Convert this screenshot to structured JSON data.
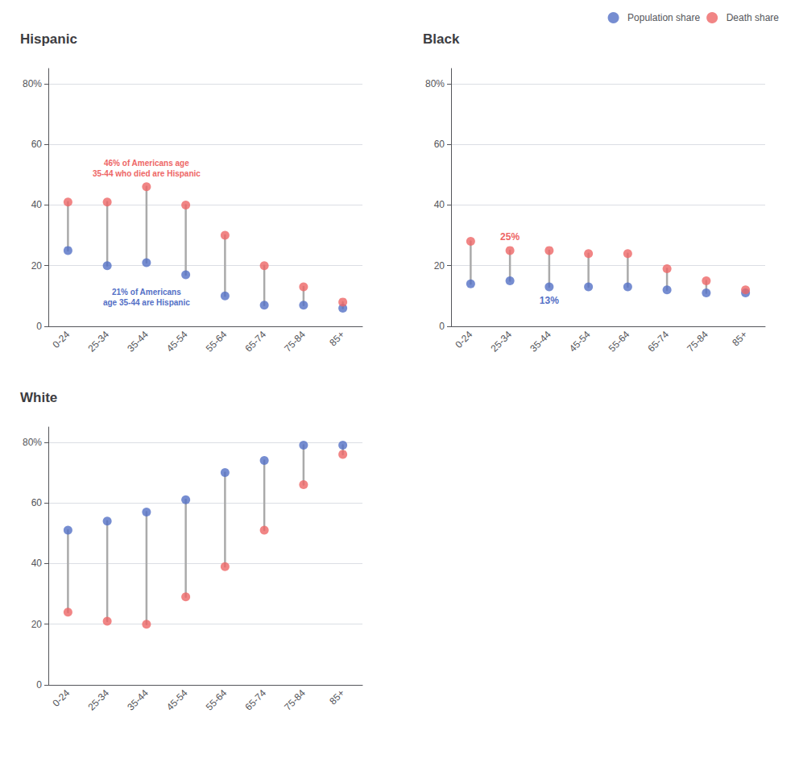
{
  "chart_data": [
    {
      "type": "dumbbell",
      "title": "Hispanic",
      "categories": [
        "0-24",
        "25-34",
        "35-44",
        "45-54",
        "55-64",
        "65-74",
        "75-84",
        "85+"
      ],
      "series": [
        {
          "name": "Population share",
          "values": [
            25,
            20,
            21,
            17,
            10,
            7,
            7,
            6
          ]
        },
        {
          "name": "Death share",
          "values": [
            41,
            41,
            46,
            40,
            30,
            20,
            13,
            8
          ]
        }
      ],
      "ylim": [
        0,
        85
      ],
      "yticks": [
        0,
        20,
        40,
        60,
        {
          "value": 80,
          "label": "80%"
        }
      ],
      "grid": true,
      "annotations": [
        {
          "text": "46% of Americans age\n35-44 who died are Hispanic",
          "series": "Death share",
          "x": "35-44",
          "y": 46
        },
        {
          "text": "21% of Americans\nage 35-44 are Hispanic",
          "series": "Population share",
          "x": "35-44",
          "y": 21
        }
      ]
    },
    {
      "type": "dumbbell",
      "title": "Black",
      "categories": [
        "0-24",
        "25-34",
        "35-44",
        "45-54",
        "55-64",
        "65-74",
        "75-84",
        "85+"
      ],
      "series": [
        {
          "name": "Population share",
          "values": [
            14,
            15,
            13,
            13,
            13,
            12,
            11,
            11
          ]
        },
        {
          "name": "Death share",
          "values": [
            28,
            25,
            25,
            24,
            24,
            19,
            15,
            12
          ]
        }
      ],
      "ylim": [
        0,
        85
      ],
      "yticks": [
        0,
        20,
        40,
        60,
        {
          "value": 80,
          "label": "80%"
        }
      ],
      "grid": true,
      "legend": "upper right",
      "annotations": [
        {
          "text": "25%",
          "series": "Death share",
          "x": "25-34",
          "y": 25
        },
        {
          "text": "13%",
          "series": "Population share",
          "x": "35-44",
          "y": 13
        }
      ]
    },
    {
      "type": "dumbbell",
      "title": "White",
      "categories": [
        "0-24",
        "25-34",
        "35-44",
        "45-54",
        "55-64",
        "65-74",
        "75-84",
        "85+"
      ],
      "series": [
        {
          "name": "Population share",
          "values": [
            51,
            54,
            57,
            61,
            70,
            74,
            79,
            79
          ]
        },
        {
          "name": "Death share",
          "values": [
            24,
            21,
            20,
            29,
            39,
            51,
            66,
            76
          ]
        }
      ],
      "ylim": [
        0,
        85
      ],
      "yticks": [
        0,
        20,
        40,
        60,
        {
          "value": 80,
          "label": "80%"
        }
      ],
      "grid": true
    }
  ]
}
